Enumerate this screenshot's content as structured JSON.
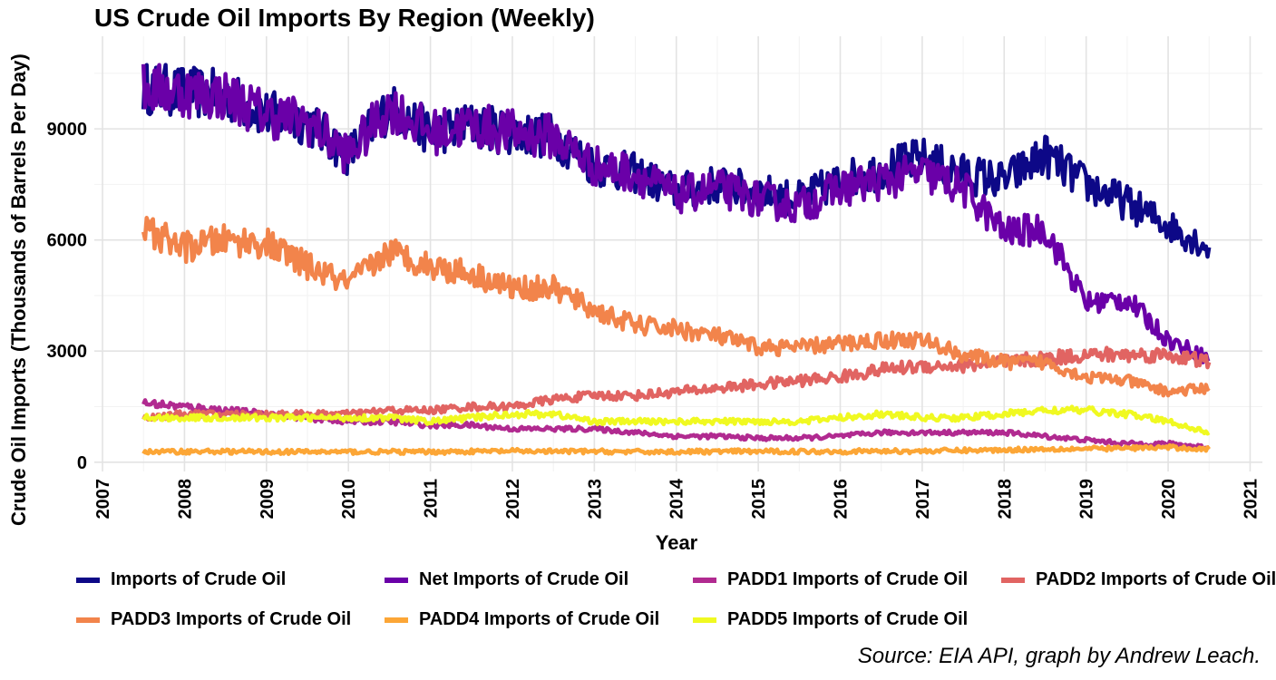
{
  "chart_data": {
    "type": "line",
    "title": "US Crude Oil Imports By Region (Weekly)",
    "xlabel": "Year",
    "ylabel": "Crude Oil Imports (Thousands of Barrels Per Day)",
    "xlim": [
      2006.9,
      2021.15
    ],
    "ylim": [
      -250,
      11500
    ],
    "xticks": [
      2007,
      2008,
      2009,
      2010,
      2011,
      2012,
      2013,
      2014,
      2015,
      2016,
      2017,
      2018,
      2019,
      2020,
      2021
    ],
    "yticks": [
      0,
      3000,
      6000,
      9000
    ],
    "grid": true,
    "legend_position": "bottom",
    "caption": "Source: EIA API, graph by Andrew Leach.",
    "x": [
      2007.5,
      2008.0,
      2008.5,
      2009.0,
      2009.5,
      2010.0,
      2010.5,
      2011.0,
      2011.5,
      2012.0,
      2012.5,
      2013.0,
      2013.5,
      2014.0,
      2014.5,
      2015.0,
      2015.5,
      2016.0,
      2016.5,
      2017.0,
      2017.5,
      2018.0,
      2018.5,
      2019.0,
      2019.5,
      2020.0,
      2020.5
    ],
    "series": [
      {
        "name": "Imports of Crude Oil",
        "color": "#0d0887",
        "values": [
          10100,
          10000,
          9900,
          9400,
          9200,
          8300,
          9600,
          8900,
          9100,
          8900,
          8800,
          8000,
          7800,
          7300,
          7500,
          7300,
          7100,
          7600,
          7900,
          8200,
          7800,
          7600,
          8300,
          7500,
          7000,
          6400,
          5800
        ]
      },
      {
        "name": "Net Imports of Crude Oil",
        "color": "#6a00a8",
        "values": [
          10100,
          10000,
          9900,
          9400,
          9200,
          8300,
          9600,
          8900,
          9100,
          8900,
          8800,
          8000,
          7800,
          7200,
          7400,
          7100,
          6900,
          7400,
          7600,
          7800,
          7400,
          6200,
          6300,
          4300,
          4400,
          3300,
          2800
        ]
      },
      {
        "name": "PADD1 Imports of Crude Oil",
        "color": "#b12a90",
        "values": [
          1600,
          1500,
          1400,
          1300,
          1200,
          1100,
          1100,
          1000,
          1000,
          900,
          900,
          900,
          800,
          700,
          700,
          650,
          650,
          700,
          800,
          800,
          800,
          800,
          700,
          600,
          500,
          500,
          400
        ]
      },
      {
        "name": "PADD2 Imports of Crude Oil",
        "color": "#e16462",
        "values": [
          1200,
          1300,
          1300,
          1300,
          1300,
          1300,
          1400,
          1400,
          1500,
          1500,
          1700,
          1800,
          1800,
          1900,
          2000,
          2100,
          2200,
          2300,
          2500,
          2600,
          2600,
          2700,
          2800,
          2900,
          2900,
          2900,
          2700
        ]
      },
      {
        "name": "PADD3 Imports of Crude Oil",
        "color": "#f2844b",
        "values": [
          6300,
          5800,
          6000,
          5900,
          5300,
          4800,
          5700,
          5300,
          5100,
          4700,
          4700,
          4100,
          3700,
          3600,
          3400,
          3100,
          3100,
          3200,
          3300,
          3300,
          2900,
          2700,
          2700,
          2300,
          2200,
          1900,
          2000
        ]
      },
      {
        "name": "PADD4 Imports of Crude Oil",
        "color": "#fca636",
        "values": [
          280,
          290,
          290,
          280,
          280,
          280,
          280,
          280,
          290,
          300,
          290,
          290,
          280,
          280,
          290,
          290,
          290,
          290,
          300,
          300,
          320,
          330,
          360,
          360,
          380,
          400,
          350
        ]
      },
      {
        "name": "PADD5 Imports of Crude Oil",
        "color": "#f0f921",
        "values": [
          1200,
          1200,
          1200,
          1200,
          1200,
          1200,
          1200,
          1100,
          1200,
          1300,
          1300,
          1100,
          1100,
          1100,
          1100,
          1100,
          1100,
          1200,
          1300,
          1200,
          1200,
          1300,
          1400,
          1400,
          1300,
          1100,
          800
        ]
      }
    ]
  }
}
